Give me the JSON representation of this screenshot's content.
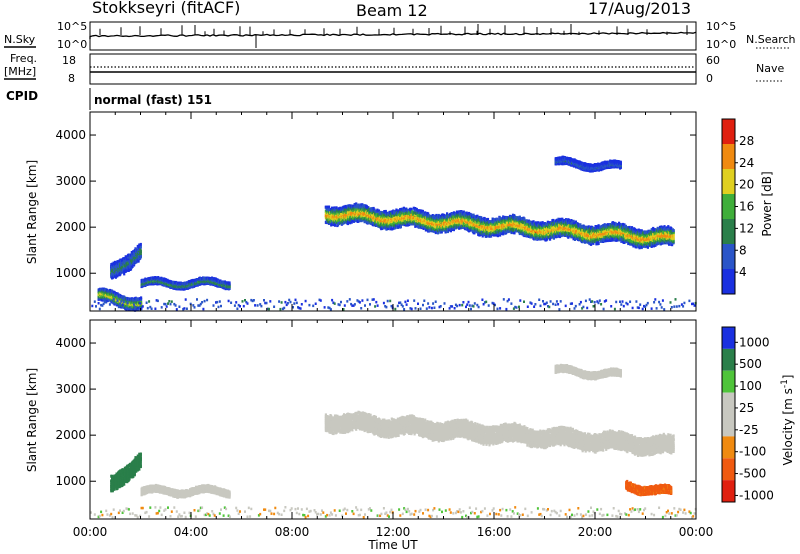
{
  "header": {
    "station": "Stokkseyri (fitACF)",
    "beam": "Beam 12",
    "date": "17/Aug/2013"
  },
  "top_panels": {
    "nsky_label": "N.Sky",
    "nsky_ticks": [
      "10^5",
      "10^0"
    ],
    "nsearch_label": "N.Search",
    "nsearch_ticks": [
      "10^5",
      "10^0"
    ],
    "freq_label": "Freq.",
    "freq_unit": "[MHz]",
    "freq_ticks": [
      "18",
      "8"
    ],
    "nave_label": "Nave",
    "nave_ticks": [
      "60",
      "0"
    ],
    "cpid_label": "CPID",
    "cpid_value": "normal (fast) 151"
  },
  "chart_data": [
    {
      "type": "heatmap",
      "panel": "power",
      "ylabel": "Slant Range [km]",
      "xlabel": "Time UT",
      "x_ticks": [
        "00:00",
        "04:00",
        "08:00",
        "12:00",
        "16:00",
        "20:00",
        "00:00"
      ],
      "y_ticks": [
        1000,
        2000,
        3000,
        4000
      ],
      "xlim_hours": [
        0,
        24
      ],
      "ylim": [
        180,
        4500
      ],
      "colorbar": {
        "label": "Power [dB]",
        "ticks": [
          4,
          8,
          12,
          16,
          20,
          24,
          28
        ],
        "range": [
          0,
          32
        ],
        "colors": [
          "#1a30e0",
          "#2a55c8",
          "#2a7f4a",
          "#3fae3a",
          "#e0d020",
          "#f08a10",
          "#e02010"
        ]
      },
      "scatter_regions": [
        {
          "t0": 9.3,
          "t1": 23.1,
          "r_center": [
            2300,
            1750
          ],
          "width_km": 330,
          "peak_db": 26
        },
        {
          "t0": 18.4,
          "t1": 21.0,
          "r_center": [
            3400,
            3300
          ],
          "width_km": 120,
          "peak_db": 8
        },
        {
          "t0": 0.3,
          "t1": 2.0,
          "r_center": [
            500,
            350
          ],
          "width_km": 220,
          "peak_db": 22
        },
        {
          "t0": 2.0,
          "t1": 5.5,
          "r_center": [
            780,
            780
          ],
          "width_km": 120,
          "peak_db": 14
        },
        {
          "t0": 0.8,
          "t1": 2.0,
          "r_center": [
            1000,
            1500
          ],
          "width_km": 300,
          "peak_db": 12
        }
      ]
    },
    {
      "type": "heatmap",
      "panel": "velocity",
      "ylabel": "Slant Range [km]",
      "xlabel": "Time UT",
      "x_ticks": [
        "00:00",
        "04:00",
        "08:00",
        "12:00",
        "16:00",
        "20:00",
        "00:00"
      ],
      "y_ticks": [
        1000,
        2000,
        3000,
        4000
      ],
      "xlim_hours": [
        0,
        24
      ],
      "ylim": [
        180,
        4500
      ],
      "colorbar": {
        "label": "Velocity [m s^-1]",
        "ticks": [
          "1000",
          "500",
          "100",
          "25",
          "-25",
          "-100",
          "-500",
          "-1000"
        ],
        "colors": [
          "#1a30e0",
          "#2a7f4a",
          "#4fc43a",
          "#c8c8c0",
          "#c8c8c0",
          "#f08a10",
          "#f05a10",
          "#e02010"
        ]
      },
      "scatter_regions": [
        {
          "t0": 9.3,
          "t1": 23.1,
          "r_center": [
            2300,
            1750
          ],
          "width_km": 330,
          "velocity_ms": 0
        },
        {
          "t0": 18.4,
          "t1": 21.0,
          "r_center": [
            3400,
            3300
          ],
          "width_km": 120,
          "velocity_ms": 0
        },
        {
          "t0": 2.0,
          "t1": 5.5,
          "r_center": [
            780,
            780
          ],
          "width_km": 120,
          "velocity_ms": 0
        },
        {
          "t0": 21.2,
          "t1": 23.0,
          "r_center": [
            900,
            750
          ],
          "width_km": 150,
          "velocity_ms": -300
        },
        {
          "t0": 0.8,
          "t1": 2.0,
          "r_center": [
            900,
            1500
          ],
          "width_km": 300,
          "velocity_ms": 600
        }
      ]
    }
  ],
  "style": {
    "background": "#ffffff",
    "axis_color": "#000000"
  }
}
